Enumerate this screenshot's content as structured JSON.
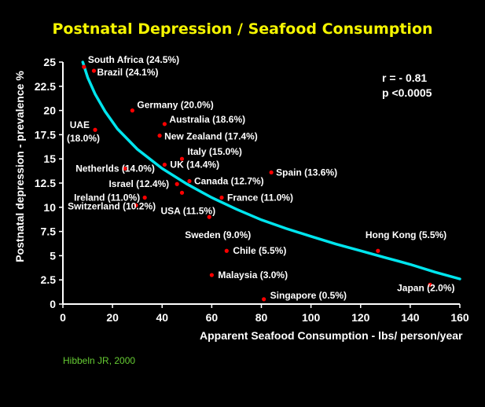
{
  "chart_data": {
    "type": "scatter",
    "title": "Postnatal Depression  /  Seafood Consumption",
    "xlabel": "Apparent Seafood Consumption - lbs/ person/year",
    "ylabel": "Postnatal depression - prevalence %",
    "xlim": [
      0,
      160
    ],
    "ylim": [
      0,
      25
    ],
    "x_ticks": [
      "0",
      "20",
      "40",
      "60",
      "80",
      "100",
      "120",
      "140",
      "160"
    ],
    "y_ticks": [
      "0",
      "2.5",
      "5",
      "7.5",
      "10",
      "12.5",
      "15",
      "17.5",
      "20",
      "22.5",
      "25"
    ],
    "stats": [
      "r = - 0.81",
      "p <0.0005"
    ],
    "citation": "Hibbeln JR, 2000",
    "colors": {
      "title": "#f5f500",
      "points": "#ff0000",
      "trend": "#00e5ee",
      "citation": "#66cc33"
    },
    "points": [
      {
        "label": "South Africa (24.5%)",
        "x": 8.5,
        "y": 24.5
      },
      {
        "label": "Brazil (24.1%)",
        "x": 12.5,
        "y": 24.1
      },
      {
        "label": "Germany (20.0%)",
        "x": 28,
        "y": 20.0
      },
      {
        "label": "UAE (18.0%)",
        "x": 13,
        "y": 18.0
      },
      {
        "label": "Australia (18.6%)",
        "x": 41,
        "y": 18.6
      },
      {
        "label": "New Zealand (17.4%)",
        "x": 39,
        "y": 17.4
      },
      {
        "label": "Italy (15.0%)",
        "x": 48,
        "y": 15.0
      },
      {
        "label": "Netherlds (14.0%)",
        "x": 25,
        "y": 14.0
      },
      {
        "label": "UK (14.4%)",
        "x": 41,
        "y": 14.4
      },
      {
        "label": "Spain (13.6%)",
        "x": 84,
        "y": 13.6
      },
      {
        "label": "Israel (12.4%)",
        "x": 46,
        "y": 12.4
      },
      {
        "label": "Canada (12.7%)",
        "x": 51,
        "y": 12.7
      },
      {
        "label": "Ireland (11.0%)",
        "x": 33,
        "y": 11.0
      },
      {
        "label": "USA (11.5%)",
        "x": 48,
        "y": 11.5
      },
      {
        "label": "France (11.0%)",
        "x": 64,
        "y": 11.0
      },
      {
        "label": "Switzerland (10.2%)",
        "x": 29.5,
        "y": 10.2
      },
      {
        "label": "Sweden (9.0%)",
        "x": 59,
        "y": 9.0
      },
      {
        "label": "Chile (5.5%)",
        "x": 66,
        "y": 5.5
      },
      {
        "label": "Hong Kong (5.5%)",
        "x": 127,
        "y": 5.5
      },
      {
        "label": "Malaysia (3.0%)",
        "x": 60,
        "y": 3.0
      },
      {
        "label": "Japan (2.0%)",
        "x": 148,
        "y": 2.0
      },
      {
        "label": "Singapore (0.5%)",
        "x": 81,
        "y": 0.5
      }
    ],
    "trend_line": {
      "x": [
        8,
        10,
        13,
        17,
        22,
        30,
        40,
        50,
        60,
        70,
        80,
        90,
        100,
        110,
        120,
        130,
        140,
        150,
        160
      ],
      "y": [
        25,
        23.4,
        21.7,
        19.9,
        18.1,
        16.0,
        14.0,
        12.4,
        11.0,
        9.8,
        8.7,
        7.8,
        7.0,
        6.2,
        5.5,
        4.8,
        4.1,
        3.3,
        2.6
      ]
    }
  }
}
